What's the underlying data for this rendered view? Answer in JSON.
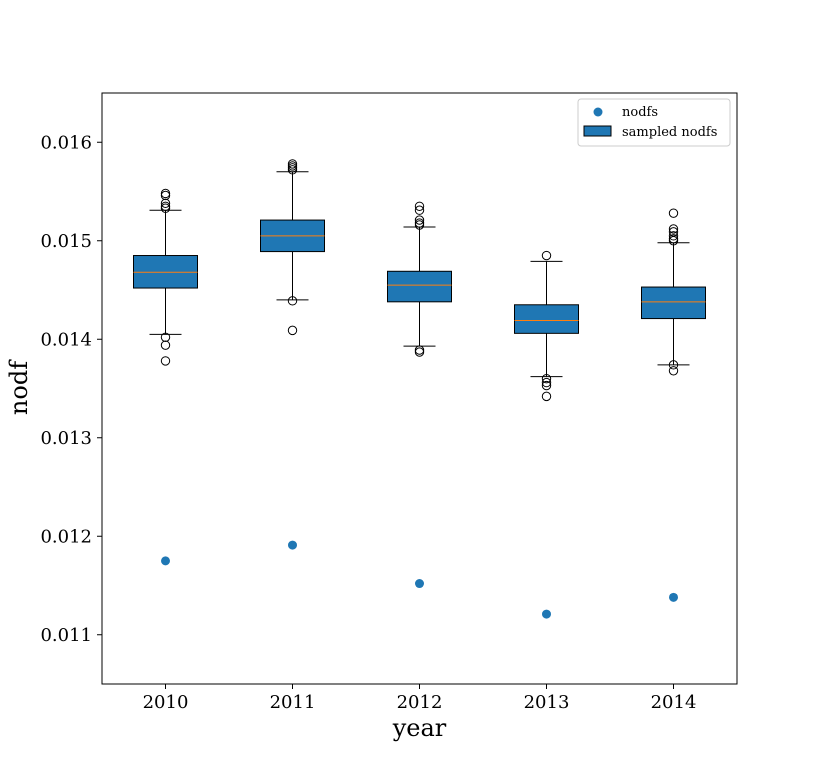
{
  "chart_data": {
    "type": "box",
    "xlabel": "year",
    "ylabel": "nodf",
    "ylim": [
      0.0105,
      0.0165
    ],
    "yticks": [
      "0.011",
      "0.012",
      "0.013",
      "0.014",
      "0.015",
      "0.016"
    ],
    "categories": [
      "2010",
      "2011",
      "2012",
      "2013",
      "2014"
    ],
    "legend": {
      "placement": "top-right",
      "entries": [
        "nodfs",
        "sampled nodfs"
      ]
    },
    "colors": {
      "box_fill": "#1f77b4",
      "median": "#ff7f0e",
      "point": "#1f77b4",
      "line": "#000000"
    },
    "series": [
      {
        "name": "sampled nodfs",
        "boxes": [
          {
            "category": "2010",
            "whisker_low": 0.01405,
            "q1": 0.01452,
            "median": 0.01468,
            "q3": 0.01485,
            "whisker_high": 0.01531,
            "outliers": [
              0.01548,
              0.01546,
              0.01538,
              0.01535,
              0.01533,
              0.01402,
              0.01394,
              0.01378
            ]
          },
          {
            "category": "2011",
            "whisker_low": 0.0144,
            "q1": 0.01489,
            "median": 0.01505,
            "q3": 0.01521,
            "whisker_high": 0.0157,
            "outliers": [
              0.01578,
              0.01576,
              0.01574,
              0.01572,
              0.01439,
              0.01409
            ]
          },
          {
            "category": "2012",
            "whisker_low": 0.01393,
            "q1": 0.01438,
            "median": 0.01455,
            "q3": 0.01469,
            "whisker_high": 0.01514,
            "outliers": [
              0.01535,
              0.01531,
              0.01521,
              0.01518,
              0.01516,
              0.01389,
              0.01387
            ]
          },
          {
            "category": "2013",
            "whisker_low": 0.01362,
            "q1": 0.01406,
            "median": 0.01419,
            "q3": 0.01435,
            "whisker_high": 0.01479,
            "outliers": [
              0.01485,
              0.0136,
              0.01356,
              0.01353,
              0.01342
            ]
          },
          {
            "category": "2014",
            "whisker_low": 0.01374,
            "q1": 0.01421,
            "median": 0.01438,
            "q3": 0.01453,
            "whisker_high": 0.01498,
            "outliers": [
              0.01528,
              0.01512,
              0.01509,
              0.01505,
              0.01502,
              0.015,
              0.01374,
              0.01368
            ]
          }
        ]
      },
      {
        "name": "nodfs",
        "type": "scatter",
        "x": [
          "2010",
          "2011",
          "2012",
          "2013",
          "2014"
        ],
        "values": [
          0.01175,
          0.01191,
          0.01152,
          0.01121,
          0.01138
        ]
      }
    ]
  }
}
